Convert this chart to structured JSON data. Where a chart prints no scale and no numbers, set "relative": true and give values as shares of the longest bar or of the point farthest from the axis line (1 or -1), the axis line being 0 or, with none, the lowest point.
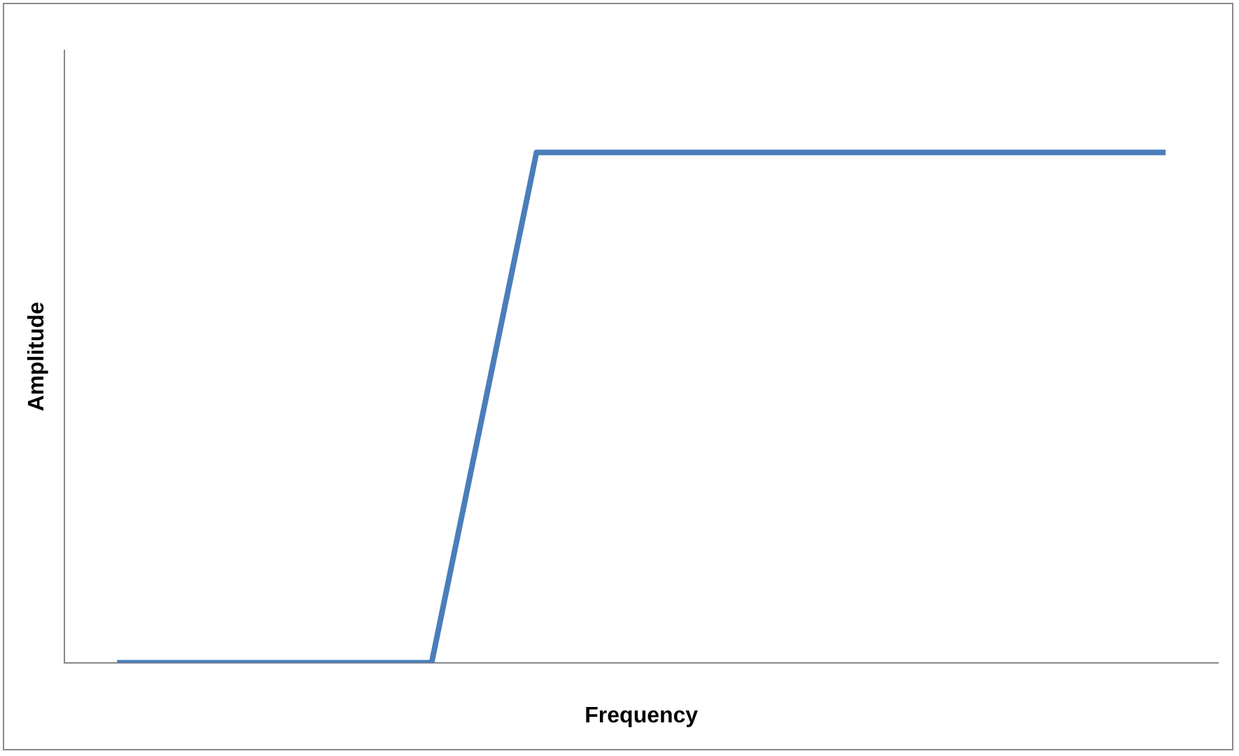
{
  "chart_data": {
    "type": "line",
    "xlabel": "Frequency",
    "ylabel": "Amplitude",
    "relative": true,
    "categories": [
      null,
      null,
      null,
      null,
      null,
      null,
      null,
      null,
      null,
      null,
      null
    ],
    "series": [
      {
        "color": "#4a7ebb",
        "values": [
          0,
          0,
          0,
          0,
          1,
          1,
          1,
          1,
          1,
          1,
          1
        ]
      }
    ],
    "grid": false,
    "legend": false,
    "marker": "none",
    "line_style": "solid"
  }
}
